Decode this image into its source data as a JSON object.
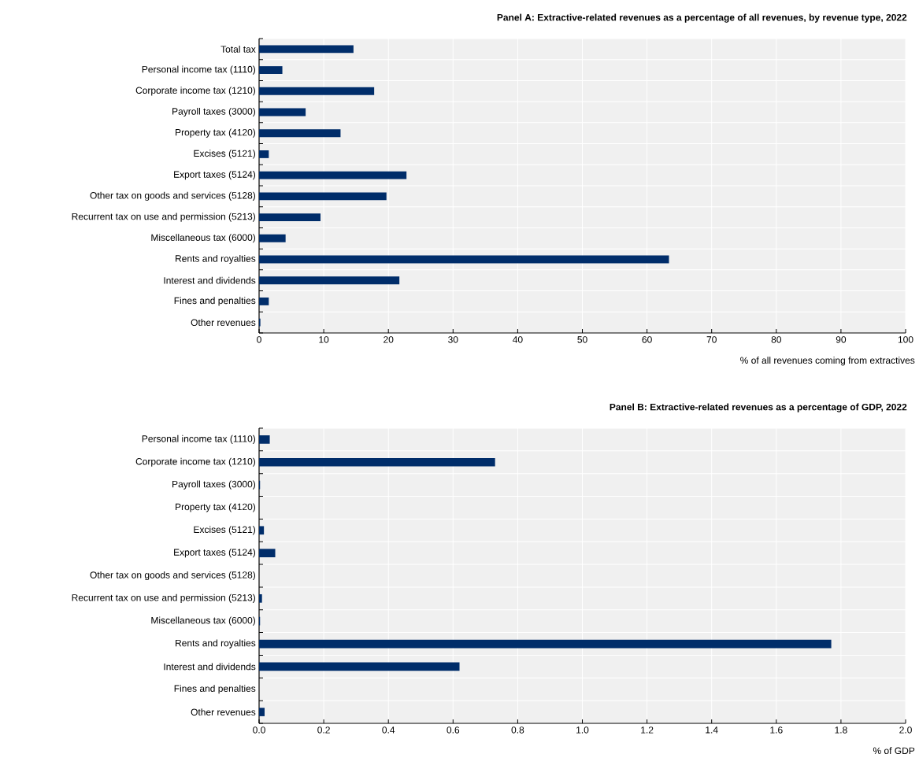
{
  "chart_data": [
    {
      "type": "bar",
      "orientation": "horizontal",
      "title": "Panel A: Extractive-related revenues as a percentage of all revenues, by revenue type, 2022",
      "xlabel": "% of all revenues coming from extractives",
      "categories": [
        "Total tax",
        "Personal income tax (1110)",
        "Corporate income tax (1210)",
        "Payroll taxes (3000)",
        "Property tax (4120)",
        "Excises (5121)",
        "Export taxes (5124)",
        "Other tax on goods and services (5128)",
        "Recurrent tax on use and permission (5213)",
        "Miscellaneous tax (6000)",
        "Rents and royalties",
        "Interest and dividends",
        "Fines and penalties",
        "Other revenues"
      ],
      "values": [
        14.6,
        3.6,
        17.8,
        7.2,
        12.6,
        1.5,
        22.8,
        19.7,
        9.5,
        4.1,
        63.4,
        21.7,
        1.5,
        0.2
      ],
      "color": "#002d6a",
      "xlim": [
        0,
        100
      ],
      "xticks": [
        0,
        10,
        20,
        30,
        40,
        50,
        60,
        70,
        80,
        90,
        100
      ],
      "grid": true
    },
    {
      "type": "bar",
      "orientation": "horizontal",
      "title": "Panel B: Extractive-related revenues as a percentage of GDP, 2022",
      "xlabel": "% of GDP",
      "categories": [
        "Personal income tax (1110)",
        "Corporate income tax (1210)",
        "Payroll taxes (3000)",
        "Property tax (4120)",
        "Excises (5121)",
        "Export taxes (5124)",
        "Other tax on goods and services (5128)",
        "Recurrent tax on use and permission (5213)",
        "Miscellaneous tax (6000)",
        "Rents and royalties",
        "Interest and dividends",
        "Fines and penalties",
        "Other revenues"
      ],
      "values": [
        0.033,
        0.73,
        0.003,
        null,
        0.015,
        0.05,
        0,
        0.009,
        0.003,
        1.77,
        0.62,
        null,
        0.017
      ],
      "color": "#002d6a",
      "xlim": [
        0,
        2
      ],
      "xticks": [
        {
          "value": 0,
          "label": "0.0"
        },
        {
          "value": 0.2,
          "label": "0.2"
        },
        {
          "value": 0.4,
          "label": "0.4"
        },
        {
          "value": 0.6,
          "label": "0.6"
        },
        {
          "value": 0.8,
          "label": "0.8"
        },
        {
          "value": 1,
          "label": "1.0"
        },
        {
          "value": 1.2,
          "label": "1.2"
        },
        {
          "value": 1.4,
          "label": "1.4"
        },
        {
          "value": 1.6,
          "label": "1.6"
        },
        {
          "value": 1.8,
          "label": "1.8"
        },
        {
          "value": 2,
          "label": "2.0"
        }
      ],
      "grid": true
    }
  ]
}
